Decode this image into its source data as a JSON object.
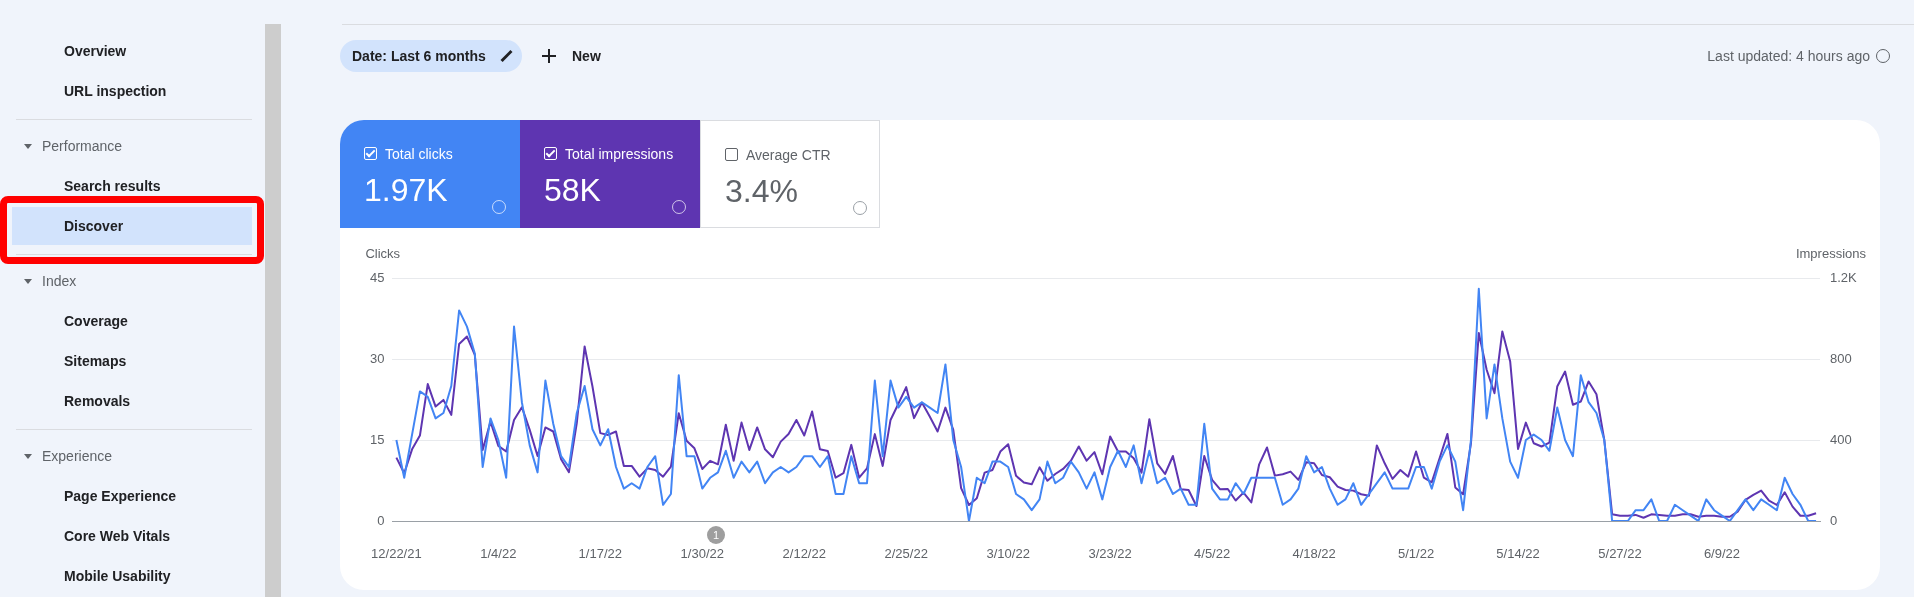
{
  "chart_data": {
    "type": "line",
    "categories": [
      "12/22/21",
      null,
      null,
      null,
      null,
      null,
      null,
      null,
      null,
      null,
      null,
      null,
      null,
      "1/4/22",
      null,
      null,
      null,
      null,
      null,
      null,
      null,
      null,
      null,
      null,
      null,
      null,
      "1/17/22",
      null,
      null,
      null,
      null,
      null,
      null,
      null,
      null,
      null,
      null,
      null,
      null,
      "1/30/22",
      null,
      null,
      null,
      null,
      null,
      null,
      null,
      null,
      null,
      null,
      null,
      null,
      "2/12/22",
      null,
      null,
      null,
      null,
      null,
      null,
      null,
      null,
      null,
      null,
      null,
      null,
      "2/25/22",
      null,
      null,
      null,
      null,
      null,
      null,
      null,
      null,
      null,
      null,
      null,
      null,
      "3/10/22",
      null,
      null,
      null,
      null,
      null,
      null,
      null,
      null,
      null,
      null,
      null,
      null,
      "3/23/22",
      null,
      null,
      null,
      null,
      null,
      null,
      null,
      null,
      null,
      null,
      null,
      null,
      "4/5/22",
      null,
      null,
      null,
      null,
      null,
      null,
      null,
      null,
      null,
      null,
      null,
      null,
      "4/18/22",
      null,
      null,
      null,
      null,
      null,
      null,
      null,
      null,
      null,
      null,
      null,
      null,
      "5/1/22",
      null,
      null,
      null,
      null,
      null,
      null,
      null,
      null,
      null,
      null,
      null,
      null,
      "5/14/22",
      null,
      null,
      null,
      null,
      null,
      null,
      null,
      null,
      null,
      null,
      null,
      null,
      "5/27/22",
      null,
      null,
      null,
      null,
      null,
      null,
      null,
      null,
      null,
      null,
      null,
      null,
      "6/9/22",
      null,
      null,
      null,
      null,
      null,
      null,
      null,
      null,
      null,
      null,
      null,
      null
    ],
    "series": [
      {
        "name": "Total clicks",
        "color": "#4285f4",
        "values": [
          15,
          8,
          16,
          24,
          23,
          19,
          20,
          25,
          39,
          36,
          31,
          10,
          19,
          15,
          8,
          36,
          22,
          14,
          9,
          26,
          18,
          12,
          10,
          20,
          25,
          17,
          14,
          17,
          10,
          6,
          7,
          6,
          10,
          12,
          3,
          5,
          27,
          12,
          12,
          6,
          8,
          9,
          13,
          8,
          11,
          9,
          11,
          7,
          9,
          10,
          9,
          10,
          12,
          12,
          10,
          12,
          5,
          5,
          12,
          7,
          7,
          26,
          12,
          26,
          21,
          23,
          21,
          22,
          21,
          20,
          29,
          15,
          10,
          0,
          8,
          7,
          11,
          11,
          10,
          5,
          4,
          2,
          4,
          11,
          7,
          8,
          11,
          9,
          6,
          9,
          4,
          10,
          13,
          10,
          14,
          7,
          13,
          7,
          8,
          5,
          6,
          3,
          3,
          18,
          6,
          4,
          4,
          7,
          5,
          8,
          8,
          8,
          8,
          3,
          4,
          6,
          12,
          9,
          10,
          6,
          3,
          4,
          7,
          3,
          5,
          7,
          9,
          6,
          6,
          6,
          10,
          10,
          6,
          11,
          14,
          11,
          2,
          15,
          43,
          19,
          29,
          19,
          11,
          8,
          15,
          16,
          15,
          13,
          21,
          15,
          12,
          27,
          22,
          20,
          15,
          0,
          0,
          0,
          2,
          2,
          4,
          0,
          0,
          3,
          2,
          1,
          0,
          4,
          2,
          1,
          0,
          2,
          4,
          2,
          4,
          3,
          2,
          8,
          5,
          3,
          0,
          0
        ]
      },
      {
        "name": "Total impressions",
        "color": "#5e35b1",
        "axis": "y2",
        "values": [
          313,
          236,
          354,
          422,
          676,
          565,
          598,
          524,
          874,
          911,
          821,
          351,
          491,
          371,
          343,
          499,
          562,
          450,
          321,
          462,
          442,
          305,
          241,
          483,
          862,
          664,
          434,
          425,
          442,
          272,
          272,
          219,
          260,
          252,
          219,
          269,
          532,
          396,
          359,
          257,
          297,
          280,
          475,
          297,
          486,
          351,
          462,
          354,
          315,
          392,
          430,
          499,
          422,
          541,
          354,
          346,
          214,
          236,
          376,
          214,
          260,
          429,
          272,
          499,
          579,
          661,
          508,
          585,
          516,
          442,
          560,
          450,
          162,
          79,
          112,
          239,
          252,
          343,
          379,
          223,
          190,
          181,
          265,
          199,
          232,
          257,
          298,
          368,
          298,
          340,
          231,
          417,
          343,
          343,
          310,
          239,
          503,
          285,
          232,
          321,
          157,
          153,
          74,
          321,
          203,
          157,
          158,
          101,
          140,
          92,
          280,
          363,
          224,
          231,
          244,
          203,
          290,
          285,
          227,
          216,
          170,
          153,
          150,
          132,
          125,
          373,
          285,
          208,
          252,
          219,
          343,
          214,
          191,
          310,
          430,
          166,
          132,
          384,
          928,
          747,
          631,
          936,
          788,
          356,
          486,
          384,
          368,
          387,
          664,
          738,
          574,
          590,
          689,
          626,
          400,
          33,
          26,
          26,
          30,
          16,
          33,
          30,
          26,
          26,
          33,
          33,
          21,
          26,
          26,
          21,
          21,
          46,
          104,
          129,
          150,
          101,
          79,
          142,
          71,
          26,
          26,
          38
        ]
      }
    ],
    "ylabel": "Clicks",
    "y2label": "Impressions",
    "ylim": [
      0,
      45
    ],
    "yticks": [
      0,
      15,
      30,
      45
    ],
    "y2lim": [
      0,
      1200
    ],
    "y2ticks": [
      0,
      400,
      800,
      {
        "value": 1200,
        "label": "1.2K"
      }
    ],
    "grid": "y",
    "legend": "top left",
    "annotations": [
      "1",
      "Date: Last 6 months",
      "New",
      "Last updated: 4 hours ago",
      "1.97K",
      "58K",
      "Average CTR",
      "3.4%",
      "Overview",
      "URL inspection",
      "Performance",
      "Search results",
      "Discover",
      "Index",
      "Coverage",
      "Sitemaps",
      "Removals",
      "Experience",
      "Page Experience",
      "Core Web Vitals",
      "Mobile Usability"
    ]
  }
}
